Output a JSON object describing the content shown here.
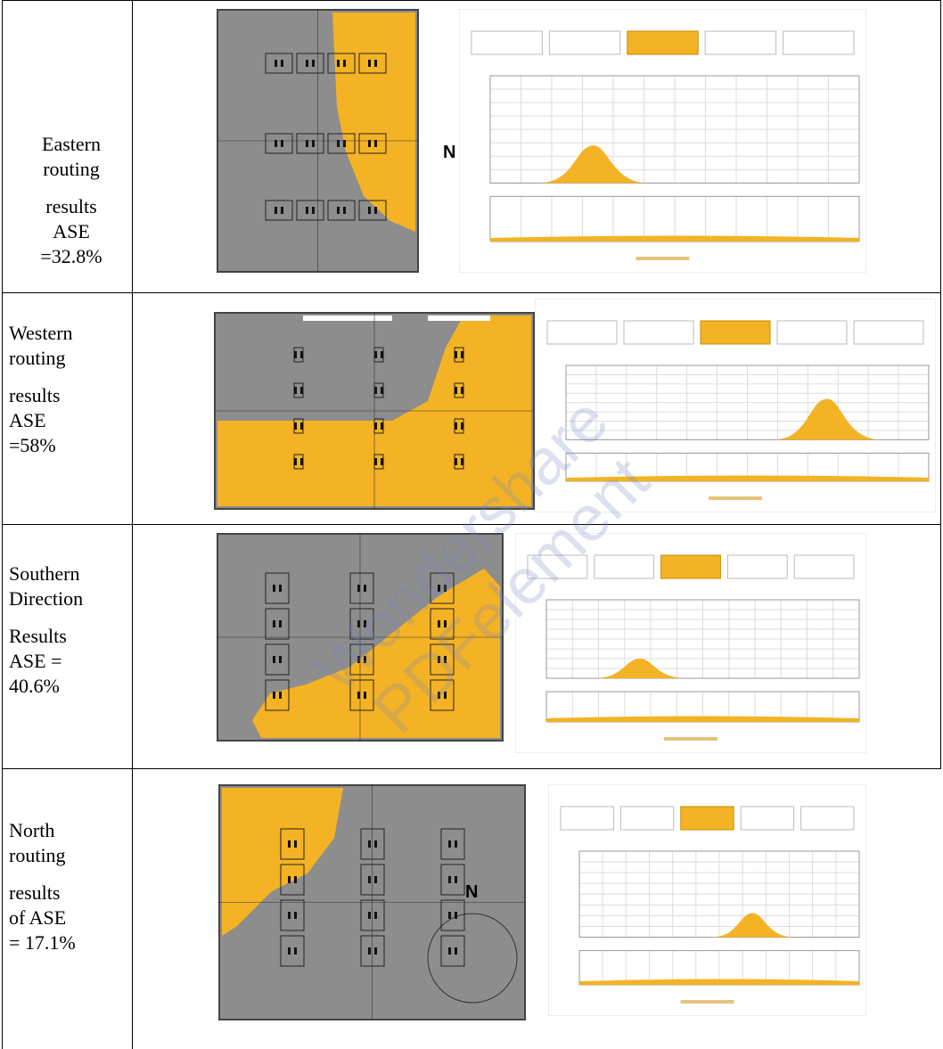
{
  "rows": [
    {
      "label": [
        "Eastern",
        "routing",
        "results",
        "ASE",
        "=32.8%"
      ],
      "compass": "N"
    },
    {
      "label": [
        "Western",
        "routing",
        "results",
        "ASE",
        "=58%"
      ]
    },
    {
      "label": [
        "Southern",
        "Direction",
        "Results",
        "ASE =",
        "40.6%"
      ]
    },
    {
      "label": [
        "North",
        "routing",
        "results",
        "of ASE",
        "= 17.1%"
      ],
      "compass": "N"
    }
  ],
  "watermark": [
    "Wondershare",
    "PDFelement"
  ]
}
